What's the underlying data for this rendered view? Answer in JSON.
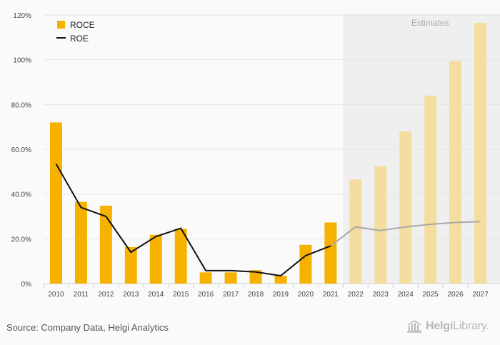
{
  "chart_data": {
    "type": "bar",
    "title": "",
    "xlabel": "",
    "ylabel": "",
    "ylim": [
      0,
      120
    ],
    "yticks": [
      "0%",
      "20.0%",
      "40.0%",
      "60.0%",
      "80.0%",
      "100%",
      "120%"
    ],
    "categories": [
      "2010",
      "2011",
      "2012",
      "2013",
      "2014",
      "2015",
      "2016",
      "2017",
      "2018",
      "2019",
      "2020",
      "2021",
      "2022",
      "2023",
      "2024",
      "2025",
      "2026",
      "2027"
    ],
    "estimate_start_index": 12,
    "estimates_label": "Estimates",
    "series": [
      {
        "name": "ROCE",
        "type": "bar",
        "color": "#f7b200",
        "estimate_color": "#f5dda0",
        "values": [
          72,
          36.5,
          34.8,
          16.3,
          21.8,
          24.5,
          5,
          5,
          6,
          3.5,
          17.3,
          27.3,
          46.5,
          52.5,
          68,
          84,
          99.5,
          116.5
        ]
      },
      {
        "name": "ROE",
        "type": "line",
        "color": "#111111",
        "estimate_color": "#a9a9a9",
        "values": [
          53.5,
          34,
          30,
          14,
          21,
          24.7,
          5.8,
          5.8,
          5.2,
          3.5,
          12.5,
          16.8,
          25.3,
          23.7,
          25.3,
          26.5,
          27.3,
          27.7
        ]
      }
    ],
    "legend": "top-left"
  },
  "source": "Source: Company Data, Helgi Analytics",
  "logo": {
    "name": "Helgi",
    "suffix": "Library."
  }
}
